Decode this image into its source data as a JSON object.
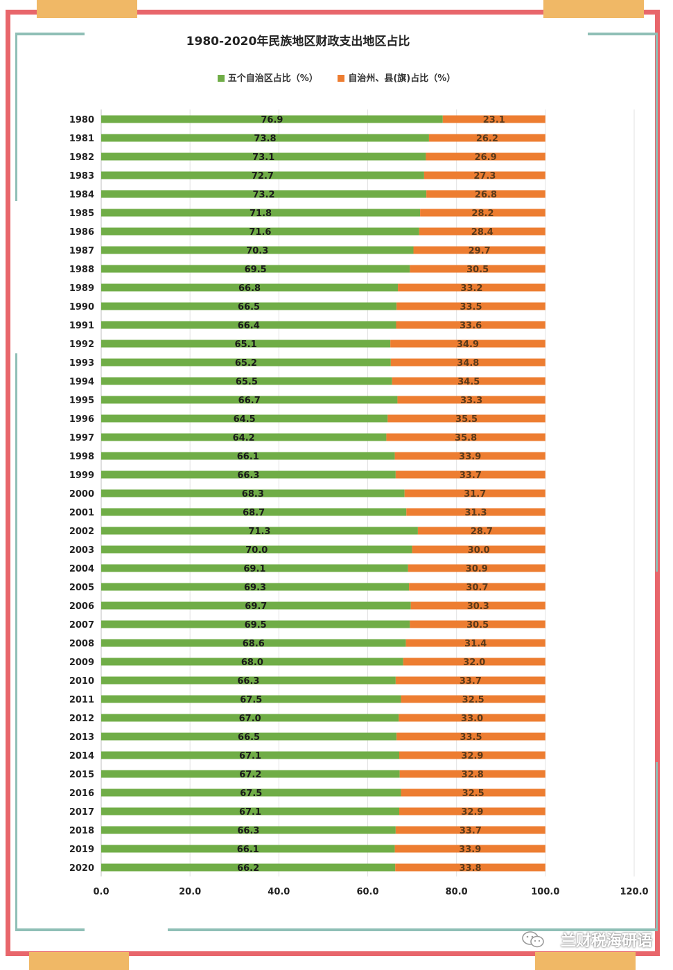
{
  "chart_data": {
    "type": "bar",
    "orientation": "horizontal",
    "stacked": true,
    "title": "1980-2020年民族地区财政支出地区占比",
    "categories": [
      "1980",
      "1981",
      "1982",
      "1983",
      "1984",
      "1985",
      "1986",
      "1987",
      "1988",
      "1989",
      "1990",
      "1991",
      "1992",
      "1993",
      "1994",
      "1995",
      "1996",
      "1997",
      "1998",
      "1999",
      "2000",
      "2001",
      "2002",
      "2003",
      "2004",
      "2005",
      "2006",
      "2007",
      "2008",
      "2009",
      "2010",
      "2011",
      "2012",
      "2013",
      "2014",
      "2015",
      "2016",
      "2017",
      "2018",
      "2019",
      "2020"
    ],
    "series": [
      {
        "name": "五个自治区占比（%）",
        "color": "#70ad47",
        "values": [
          76.9,
          73.8,
          73.1,
          72.7,
          73.2,
          71.8,
          71.6,
          70.3,
          69.5,
          66.8,
          66.5,
          66.4,
          65.1,
          65.2,
          65.5,
          66.7,
          64.5,
          64.2,
          66.1,
          66.3,
          68.3,
          68.7,
          71.3,
          70.0,
          69.1,
          69.3,
          69.7,
          69.5,
          68.6,
          68.0,
          66.3,
          67.5,
          67.0,
          66.5,
          67.1,
          67.2,
          67.5,
          67.1,
          66.3,
          66.1,
          66.2
        ]
      },
      {
        "name": "自治州、县(旗)占比（%）",
        "color": "#ed7d31",
        "values": [
          23.1,
          26.2,
          26.9,
          27.3,
          26.8,
          28.2,
          28.4,
          29.7,
          30.5,
          33.2,
          33.5,
          33.6,
          34.9,
          34.8,
          34.5,
          33.3,
          35.5,
          35.8,
          33.9,
          33.7,
          31.7,
          31.3,
          28.7,
          30.0,
          30.9,
          30.7,
          30.3,
          30.5,
          31.4,
          32.0,
          33.7,
          32.5,
          33.0,
          33.5,
          32.9,
          32.8,
          32.5,
          32.9,
          33.7,
          33.9,
          33.8
        ]
      }
    ],
    "xlim": [
      0,
      120
    ],
    "xticks": [
      "0.0",
      "20.0",
      "40.0",
      "60.0",
      "80.0",
      "100.0",
      "120.0"
    ],
    "grid": true,
    "legend": "top"
  },
  "watermark": "兰财税海研语",
  "watermark_icon": "wechat-icon"
}
